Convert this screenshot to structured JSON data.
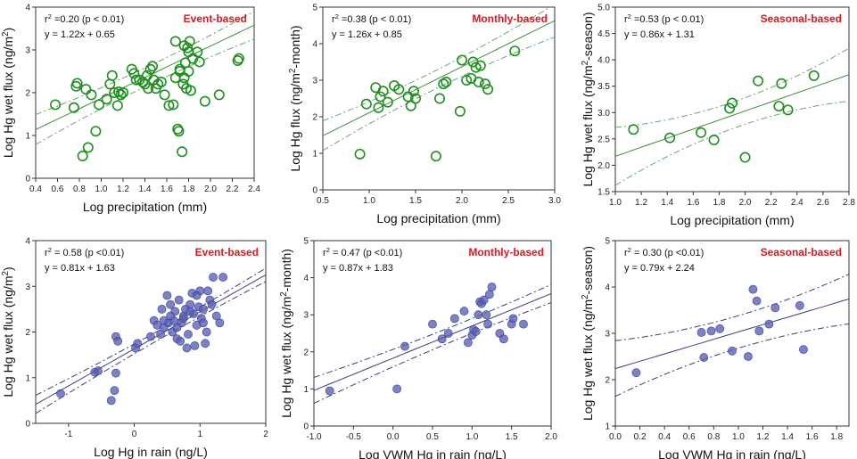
{
  "chart_data": [
    {
      "id": "p1",
      "type": "scatter",
      "title": "Event-based",
      "stat1": "r² =0.20 (p < 0.01)",
      "stat2": "y = 1.22x + 0.65",
      "xlabel": "Log precipitation (mm)",
      "ylabel": "Log Hg wet flux (ng/m²)",
      "xlim": [
        0.4,
        2.4
      ],
      "ylim": [
        0,
        4
      ],
      "xticks": [
        "0.4",
        "0.6",
        "0.8",
        "1.0",
        "1.2",
        "1.4",
        "1.6",
        "1.8",
        "2.0",
        "2.2",
        "2.4"
      ],
      "yticks": [
        "0",
        "1",
        "2",
        "3",
        "4"
      ],
      "x": [
        0.58,
        0.75,
        0.77,
        0.78,
        0.83,
        0.86,
        0.88,
        0.91,
        0.98,
        0.95,
        1.05,
        1.08,
        1.1,
        1.12,
        1.15,
        1.16,
        1.18,
        1.2,
        1.28,
        1.3,
        1.32,
        1.35,
        1.38,
        1.4,
        1.42,
        1.43,
        1.45,
        1.47,
        1.48,
        1.5,
        1.52,
        1.55,
        1.58,
        1.62,
        1.66,
        1.68,
        1.7,
        1.71,
        1.72,
        1.74,
        1.75,
        1.76,
        1.77,
        1.78,
        1.79,
        1.8,
        1.81,
        1.82,
        1.84,
        1.88,
        1.9,
        1.95,
        2.08,
        2.25,
        2.26,
        1.68,
        1.72,
        1.8,
        1.76
      ],
      "y": [
        1.72,
        1.65,
        2.15,
        2.22,
        0.52,
        2.08,
        0.72,
        1.95,
        1.72,
        1.1,
        1.85,
        2.2,
        2.4,
        2.0,
        1.7,
        2.02,
        1.95,
        2.0,
        2.55,
        2.45,
        2.3,
        2.3,
        2.25,
        2.2,
        2.4,
        2.1,
        2.55,
        2.62,
        2.3,
        2.1,
        2.2,
        2.25,
        1.95,
        1.7,
        1.72,
        3.2,
        1.15,
        1.1,
        2.5,
        0.62,
        2.2,
        2.35,
        2.7,
        2.1,
        3.05,
        2.5,
        3.2,
        2.05,
        2.8,
        2.95,
        2.72,
        1.8,
        1.95,
        2.75,
        2.8,
        2.35,
        2.55,
        2.95,
        3.1
      ],
      "fit": [
        1.22,
        0.65
      ],
      "band": [
        0.35,
        0.22
      ],
      "style": "open-green"
    },
    {
      "id": "p2",
      "type": "scatter",
      "title": "Monthly-based",
      "stat1": "r² =0.38 (p < 0.01)",
      "stat2": "y = 1.26x + 0.85",
      "xlabel": "Log precipitation (mm)",
      "ylabel": "Log Hg flux (ng/m²-month)",
      "xlim": [
        0.5,
        3.0
      ],
      "ylim": [
        0,
        5
      ],
      "xticks": [
        "0.5",
        "1.0",
        "1.5",
        "2.0",
        "2.5",
        "3.0"
      ],
      "yticks": [
        "0",
        "1",
        "2",
        "3",
        "4",
        "5"
      ],
      "x": [
        0.9,
        0.97,
        1.07,
        1.1,
        1.12,
        1.15,
        1.2,
        1.27,
        1.32,
        1.42,
        1.45,
        1.48,
        1.5,
        1.72,
        1.76,
        1.8,
        1.83,
        1.98,
        2.0,
        2.05,
        2.1,
        2.12,
        2.15,
        2.18,
        2.2,
        2.25,
        2.28,
        2.57
      ],
      "y": [
        0.98,
        2.35,
        2.8,
        2.25,
        2.55,
        2.7,
        2.4,
        2.85,
        2.75,
        2.55,
        2.3,
        2.7,
        2.5,
        0.92,
        2.5,
        2.9,
        2.95,
        2.15,
        3.55,
        3.0,
        3.05,
        3.5,
        3.35,
        2.95,
        3.4,
        2.9,
        2.75,
        3.8
      ],
      "fit": [
        1.26,
        0.85
      ],
      "band": [
        0.45,
        0.25
      ],
      "style": "open-green"
    },
    {
      "id": "p3",
      "type": "scatter",
      "title": "Seasonal-based",
      "stat1": "r² =0.53 (p < 0.01)",
      "stat2": "y = 0.86x + 1.31",
      "xlabel": "Log precipitation (mm)",
      "ylabel": "Log Hg wet flux (ng/m²-season)",
      "xlim": [
        1.0,
        2.8
      ],
      "ylim": [
        1.5,
        5.0
      ],
      "xticks": [
        "1.0",
        "1.2",
        "1.4",
        "1.6",
        "1.8",
        "2.0",
        "2.2",
        "2.4",
        "2.6",
        "2.8"
      ],
      "yticks": [
        "1.5",
        "2.0",
        "2.5",
        "3.0",
        "3.5",
        "4.0",
        "4.5",
        "5.0"
      ],
      "x": [
        1.14,
        1.42,
        1.66,
        1.76,
        1.88,
        1.9,
        2.0,
        2.1,
        2.26,
        2.28,
        2.33,
        2.53
      ],
      "y": [
        2.68,
        2.52,
        2.62,
        2.48,
        3.08,
        3.18,
        2.15,
        3.6,
        3.12,
        3.55,
        3.05,
        3.7
      ],
      "fit": [
        0.86,
        1.31
      ],
      "band": [
        0.55,
        0.25
      ],
      "style": "open-green"
    },
    {
      "id": "p4",
      "type": "scatter",
      "title": "Event-based",
      "stat1": "r² = 0.58 (p <0.01)",
      "stat2": "y = 0.81x + 1.63",
      "xlabel": "Log Hg in rain (ng/L)",
      "ylabel": "Log Hg wet flux (ng/m²)",
      "xlim": [
        -1.5,
        2.0
      ],
      "ylim": [
        0,
        4
      ],
      "xticks": [
        "-1",
        "0",
        "1",
        "2"
      ],
      "xtickvals": [
        -1,
        0,
        1,
        2
      ],
      "yticks": [
        "0",
        "1",
        "2",
        "3",
        "4"
      ],
      "x": [
        -1.12,
        -0.6,
        -0.55,
        -0.35,
        -0.3,
        -0.28,
        -0.28,
        -0.25,
        0.02,
        0.05,
        0.25,
        0.3,
        0.35,
        0.4,
        0.42,
        0.45,
        0.5,
        0.52,
        0.55,
        0.58,
        0.6,
        0.62,
        0.65,
        0.68,
        0.7,
        0.72,
        0.75,
        0.78,
        0.8,
        0.82,
        0.85,
        0.88,
        0.9,
        0.92,
        0.95,
        0.98,
        1.0,
        1.02,
        1.05,
        1.08,
        1.1,
        1.12,
        1.15,
        1.18,
        1.2,
        1.25,
        1.3,
        1.35,
        0.55,
        0.65,
        0.75,
        0.85,
        0.95,
        1.05,
        0.45
      ],
      "y": [
        0.65,
        1.12,
        1.15,
        0.5,
        0.72,
        1.1,
        1.9,
        1.8,
        1.65,
        1.75,
        1.9,
        2.25,
        2.15,
        1.95,
        2.5,
        2.1,
        2.8,
        2.2,
        2.6,
        2.0,
        2.25,
        2.45,
        1.85,
        2.7,
        1.8,
        2.2,
        2.35,
        2.5,
        1.65,
        1.95,
        2.6,
        2.85,
        2.4,
        1.7,
        2.15,
        2.55,
        2.9,
        2.3,
        2.5,
        1.75,
        2.0,
        2.9,
        2.7,
        2.6,
        3.2,
        2.35,
        2.2,
        3.2,
        2.35,
        2.1,
        2.3,
        2.45,
        2.8,
        2.2,
        2.25
      ],
      "fit": [
        0.81,
        1.63
      ],
      "band": [
        0.2,
        0.1
      ],
      "style": "filled-blue"
    },
    {
      "id": "p5",
      "type": "scatter",
      "title": "Monthly-based",
      "stat1": "r² = 0.47 (p <0.01)",
      "stat2": "y = 0.87x + 1.83",
      "xlabel": "Log VWM Hg in rain (ng/L)",
      "ylabel": "Log Hg wet flux (ng/m²-month)",
      "xlim": [
        -1.0,
        2.0
      ],
      "ylim": [
        0,
        5
      ],
      "xticks": [
        "-1.0",
        "-0.5",
        "0.0",
        "0.5",
        "1.0",
        "1.5",
        "2.0"
      ],
      "yticks": [
        "0",
        "1",
        "2",
        "3",
        "4",
        "5"
      ],
      "x": [
        -0.8,
        0.05,
        0.15,
        0.5,
        0.62,
        0.7,
        0.78,
        0.9,
        0.95,
        1.0,
        1.02,
        1.05,
        1.08,
        1.1,
        1.12,
        1.15,
        1.18,
        1.2,
        1.22,
        1.25,
        1.35,
        1.4,
        1.5,
        1.52,
        1.65
      ],
      "y": [
        0.95,
        1.0,
        2.15,
        2.75,
        2.35,
        2.5,
        2.9,
        3.1,
        2.25,
        2.45,
        2.6,
        2.55,
        3.0,
        3.35,
        3.3,
        3.4,
        3.0,
        2.75,
        3.55,
        3.75,
        2.5,
        2.35,
        2.75,
        2.9,
        2.75
      ],
      "fit": [
        0.87,
        1.83
      ],
      "band": [
        0.35,
        0.2
      ],
      "style": "filled-blue"
    },
    {
      "id": "p6",
      "type": "scatter",
      "title": "Seasonal-based",
      "stat1": "r² = 0.30 (p <0.01)",
      "stat2": "y = 0.79x + 2.24",
      "xlabel": "Log VWM Hg in rain (ng/L)",
      "ylabel": "Log Hg wet flux (ng/m²-season)",
      "xlim": [
        0.0,
        1.9
      ],
      "ylim": [
        1,
        5
      ],
      "xticks": [
        "0.0",
        "0.2",
        "0.4",
        "0.6",
        "0.8",
        "1.0",
        "1.2",
        "1.4",
        "1.6",
        "1.8"
      ],
      "yticks": [
        "1",
        "2",
        "3",
        "4",
        "5"
      ],
      "x": [
        0.17,
        0.7,
        0.72,
        0.78,
        0.85,
        0.95,
        1.08,
        1.12,
        1.15,
        1.17,
        1.25,
        1.3,
        1.5,
        1.53
      ],
      "y": [
        2.15,
        3.02,
        2.48,
        3.05,
        3.1,
        2.62,
        2.5,
        3.95,
        3.7,
        3.05,
        3.2,
        3.55,
        3.6,
        2.65
      ],
      "fit": [
        0.79,
        2.24
      ],
      "band": [
        0.6,
        0.35
      ],
      "style": "filled-blue"
    }
  ],
  "panel_layout": [
    {
      "id": "p1",
      "title_anchor": "right"
    },
    {
      "id": "p2",
      "title_anchor": "right"
    },
    {
      "id": "p3",
      "title_anchor": "right"
    },
    {
      "id": "p4",
      "title_anchor": "right"
    },
    {
      "id": "p5",
      "title_anchor": "right"
    },
    {
      "id": "p6",
      "title_anchor": "right"
    }
  ]
}
